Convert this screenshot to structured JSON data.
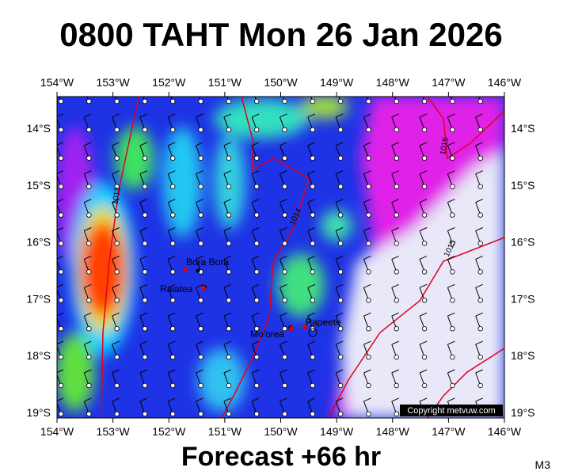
{
  "header": {
    "title": "0800 TAHT Mon 26 Jan 2026"
  },
  "map": {
    "lon_labels": [
      "154°W",
      "153°W",
      "152°W",
      "151°W",
      "150°W",
      "149°W",
      "148°W",
      "147°W",
      "146°W"
    ],
    "lat_labels": [
      "14°S",
      "15°S",
      "16°S",
      "17°S",
      "18°S",
      "19°S"
    ],
    "places": [
      "Bora Bora",
      "Raiatea",
      "Mo'orea",
      "Papeete"
    ],
    "isobars": [
      "1013",
      "1014",
      "1015",
      "1015"
    ],
    "copyright": "Copyright metvuw.com"
  },
  "footer": {
    "forecast": "Forecast +66 hr",
    "code": "M3"
  }
}
